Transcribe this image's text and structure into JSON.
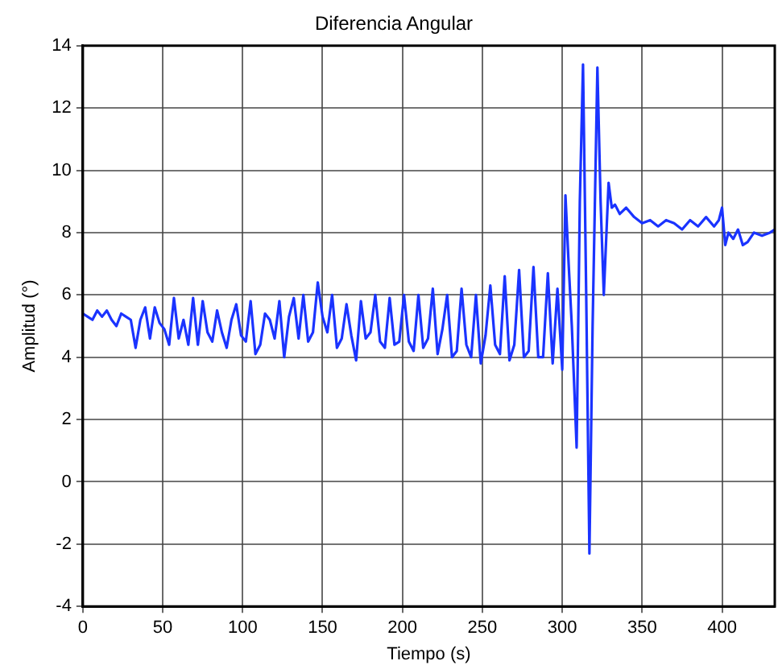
{
  "chart_data": {
    "type": "line",
    "title": "Diferencia Angular",
    "xlabel": "Tiempo (s)",
    "ylabel": "Amplitud (°)",
    "xlim": [
      0,
      433
    ],
    "ylim": [
      -4,
      14
    ],
    "xticks": [
      0,
      50,
      100,
      150,
      200,
      250,
      300,
      350,
      400
    ],
    "yticks": [
      -4,
      -2,
      0,
      2,
      4,
      6,
      8,
      10,
      12,
      14
    ],
    "grid": true,
    "legend": false,
    "marker": "none",
    "line_style": "solid",
    "series": [
      {
        "color": "#1a33ff",
        "x": [
          0,
          3,
          6,
          9,
          12,
          15,
          18,
          21,
          24,
          27,
          30,
          33,
          36,
          39,
          42,
          45,
          48,
          51,
          54,
          57,
          60,
          63,
          66,
          69,
          72,
          75,
          78,
          81,
          84,
          87,
          90,
          93,
          96,
          99,
          102,
          105,
          108,
          111,
          114,
          117,
          120,
          123,
          126,
          129,
          132,
          135,
          138,
          141,
          144,
          147,
          150,
          153,
          156,
          159,
          162,
          165,
          168,
          171,
          174,
          177,
          180,
          183,
          186,
          189,
          192,
          195,
          198,
          201,
          204,
          207,
          210,
          213,
          216,
          219,
          222,
          225,
          228,
          231,
          234,
          237,
          240,
          243,
          246,
          249,
          252,
          255,
          258,
          261,
          264,
          267,
          270,
          273,
          276,
          279,
          282,
          285,
          288,
          291,
          294,
          297,
          300,
          302,
          304,
          306,
          309,
          311,
          313,
          315,
          317,
          319,
          322,
          324,
          326,
          329,
          331,
          333,
          336,
          340,
          345,
          350,
          355,
          360,
          365,
          370,
          375,
          380,
          385,
          390,
          395,
          398,
          400,
          402,
          404,
          407,
          410,
          413,
          416,
          420,
          425,
          430,
          433
        ],
        "values": [
          5.4,
          5.3,
          5.2,
          5.5,
          5.3,
          5.5,
          5.2,
          5.0,
          5.4,
          5.3,
          5.2,
          4.3,
          5.2,
          5.6,
          4.6,
          5.6,
          5.1,
          4.9,
          4.4,
          5.9,
          4.6,
          5.2,
          4.4,
          5.9,
          4.4,
          5.8,
          4.8,
          4.5,
          5.5,
          4.8,
          4.3,
          5.2,
          5.7,
          4.7,
          4.5,
          5.8,
          4.1,
          4.4,
          5.4,
          5.2,
          4.6,
          5.8,
          4.0,
          5.3,
          5.9,
          4.6,
          6.0,
          4.5,
          4.8,
          6.4,
          5.3,
          4.8,
          6.0,
          4.3,
          4.6,
          5.7,
          4.7,
          3.9,
          5.8,
          4.6,
          4.8,
          6.0,
          4.5,
          4.3,
          5.9,
          4.4,
          4.5,
          6.0,
          4.5,
          4.2,
          6.0,
          4.3,
          4.6,
          6.2,
          4.1,
          4.9,
          6.0,
          4.0,
          4.2,
          6.2,
          4.4,
          4.0,
          6.0,
          3.8,
          4.7,
          6.3,
          4.4,
          4.1,
          6.6,
          3.9,
          4.4,
          6.8,
          4.0,
          4.2,
          6.9,
          4.0,
          4.0,
          6.7,
          3.8,
          6.2,
          3.6,
          9.2,
          7.0,
          5.0,
          1.1,
          9.0,
          13.4,
          6.0,
          -2.3,
          5.0,
          13.3,
          9.0,
          6.0,
          9.6,
          8.8,
          8.9,
          8.6,
          8.8,
          8.5,
          8.3,
          8.4,
          8.2,
          8.4,
          8.3,
          8.1,
          8.4,
          8.2,
          8.5,
          8.2,
          8.4,
          8.8,
          7.6,
          8.0,
          7.8,
          8.1,
          7.6,
          7.7,
          8.0,
          7.9,
          8.0,
          8.1
        ]
      }
    ]
  }
}
